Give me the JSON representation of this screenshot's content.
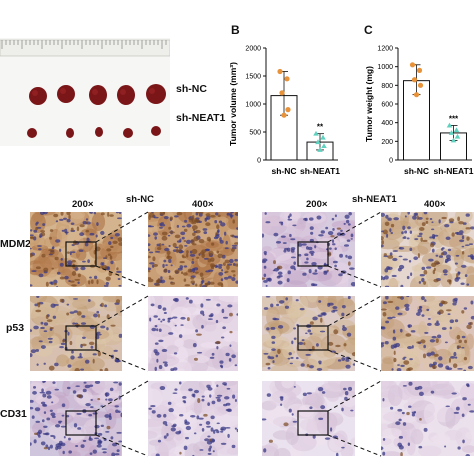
{
  "panelA": {
    "group_labels": [
      "sh-NC",
      "sh-NEAT1"
    ]
  },
  "panelB": {
    "letter": "B"
  },
  "panelC": {
    "letter": "C"
  },
  "chart_data": [
    {
      "type": "bar",
      "ylabel": "Tumor volume (mm³)",
      "categories": [
        "sh-NC",
        "sh-NEAT1"
      ],
      "values": [
        1150,
        320
      ],
      "points": [
        [
          1580,
          1450,
          1200,
          900,
          800
        ],
        [
          470,
          400,
          320,
          250,
          180
        ]
      ],
      "ylim": [
        0,
        2000
      ],
      "yticks": [
        "0",
        "500",
        "1000",
        "1500",
        "2000"
      ],
      "significance": [
        "",
        "**"
      ],
      "point_colors": [
        "#e8923a",
        "#5fd1bf"
      ]
    },
    {
      "type": "bar",
      "ylabel": "Tumor weight (mg)",
      "categories": [
        "sh-NC",
        "sh-NEAT1"
      ],
      "values": [
        850,
        290
      ],
      "points": [
        [
          1020,
          960,
          860,
          800,
          700
        ],
        [
          370,
          320,
          290,
          250,
          210
        ]
      ],
      "ylim": [
        0,
        1200
      ],
      "yticks": [
        "0",
        "200",
        "400",
        "600",
        "800",
        "1000",
        "1200"
      ],
      "significance": [
        "",
        "***"
      ],
      "point_colors": [
        "#e8923a",
        "#5fd1bf"
      ]
    }
  ],
  "ihc": {
    "group_left": "sh-NC",
    "group_right": "sh-NEAT1",
    "mag_low": "200×",
    "mag_high": "400×",
    "rows": [
      "MDM2",
      "p53",
      "CD31"
    ]
  }
}
